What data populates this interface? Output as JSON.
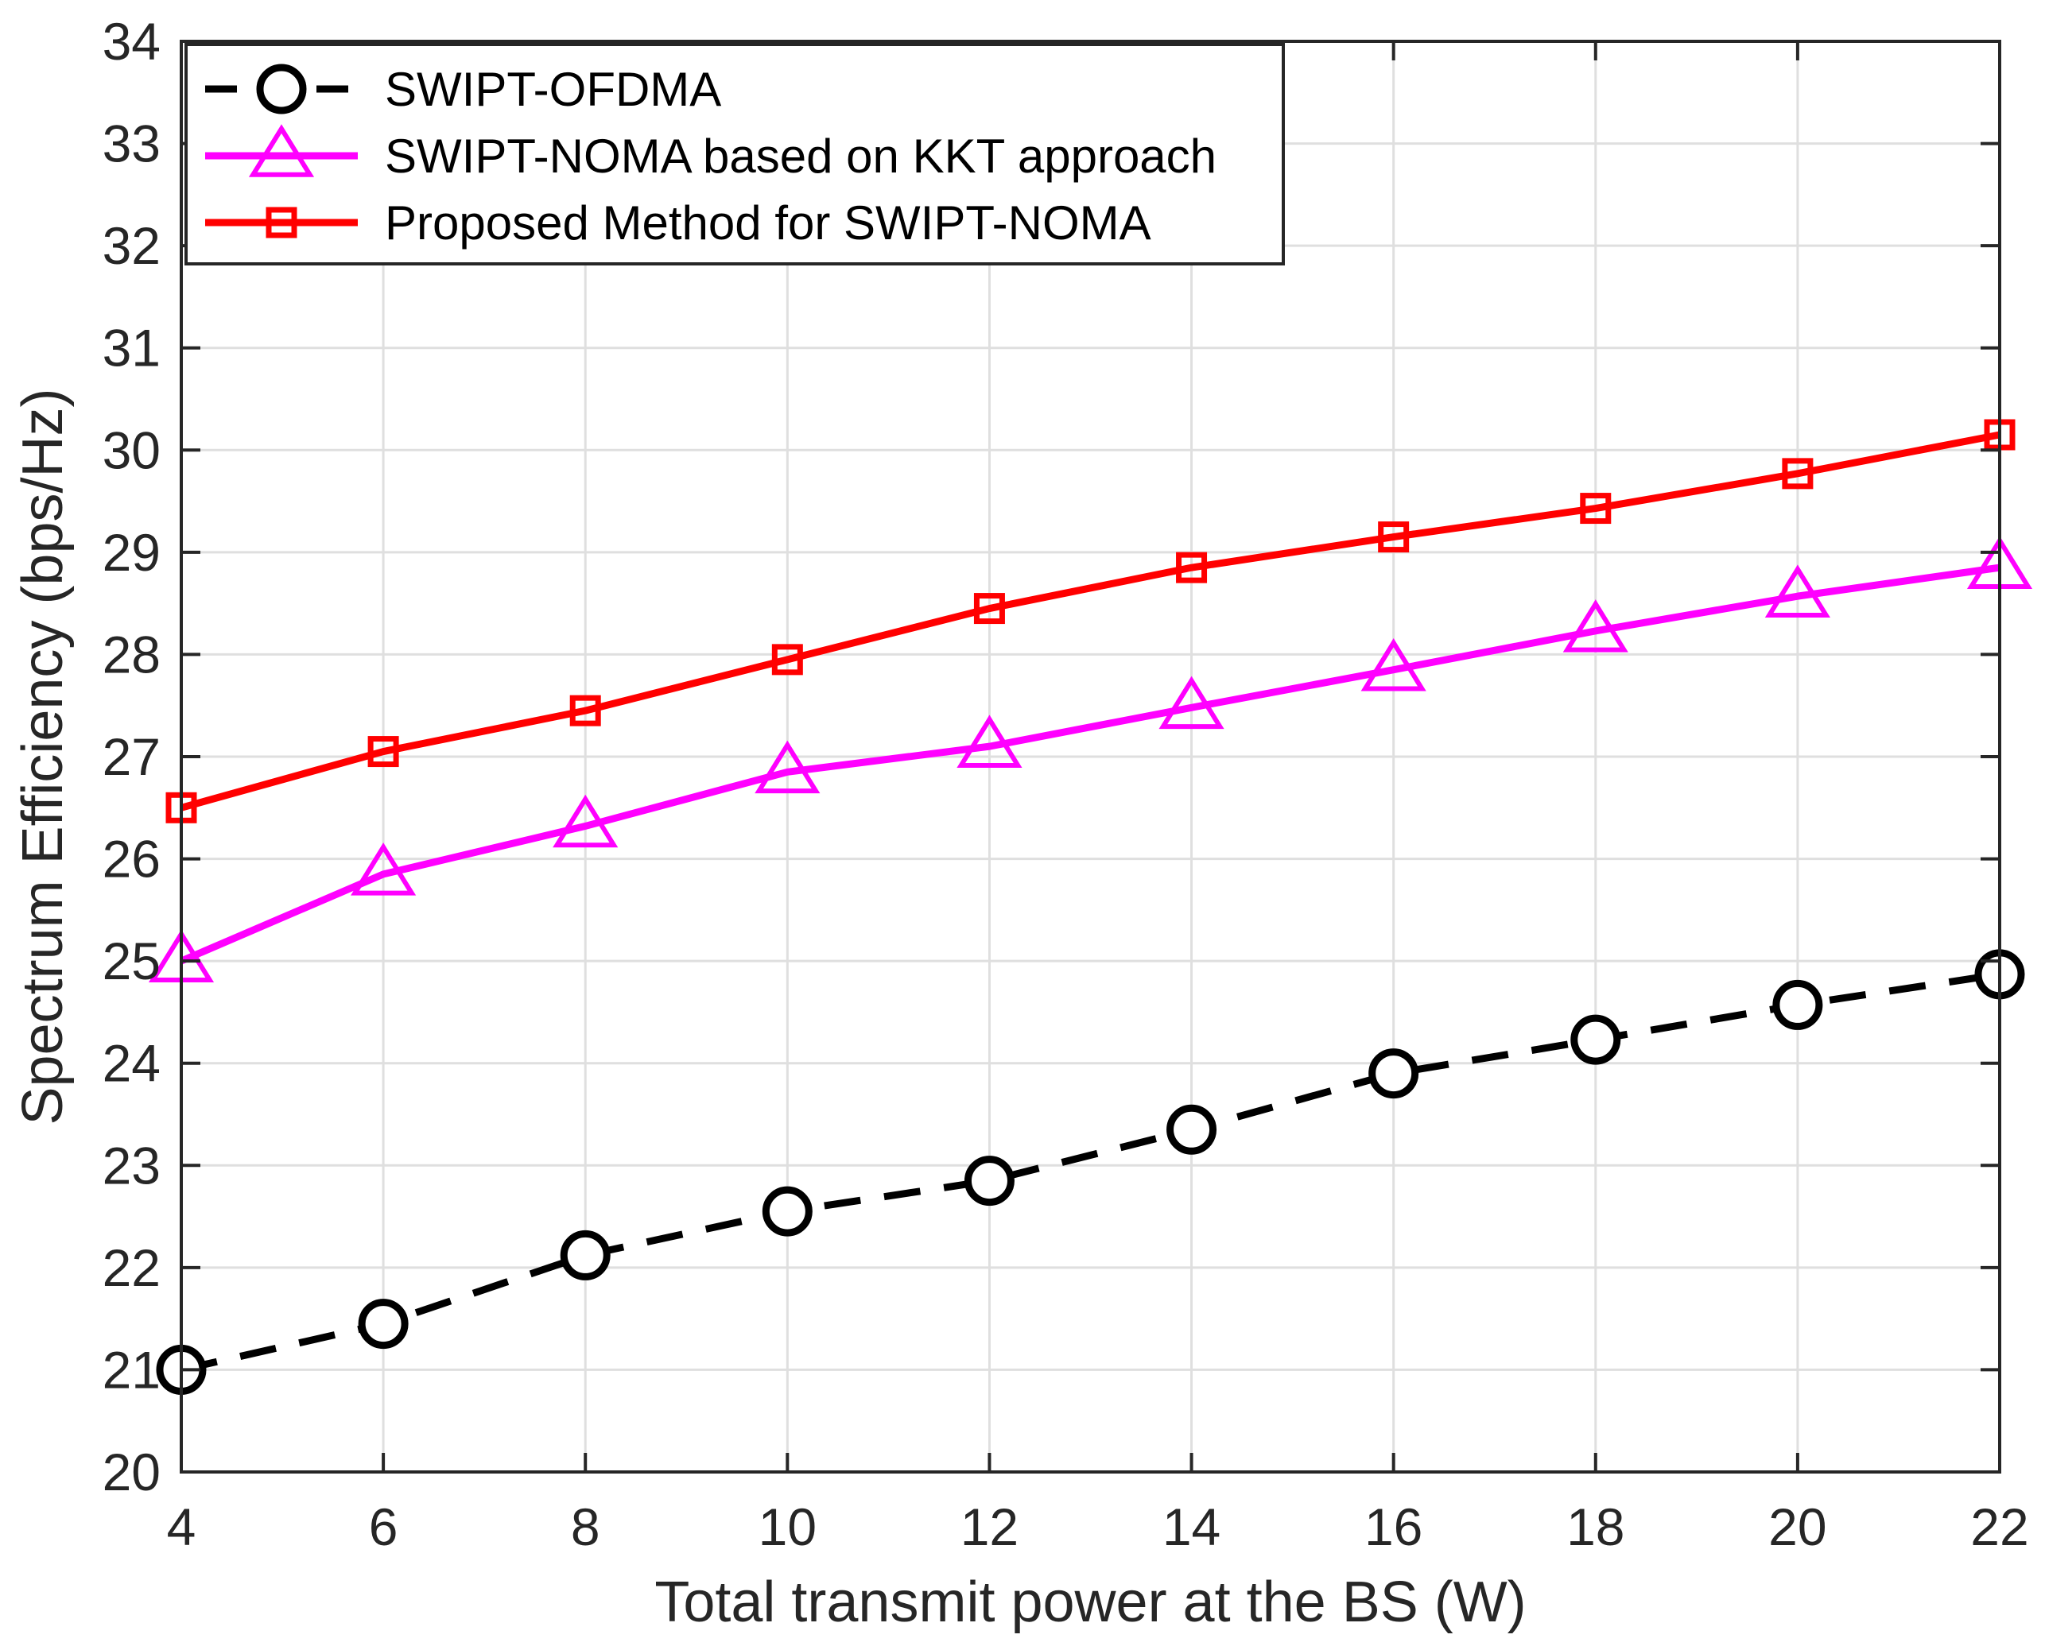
{
  "chart_data": {
    "type": "line",
    "title": "",
    "xlabel": "Total transmit power at the BS (W)",
    "ylabel": "Spectrum Efficiency (bps/Hz)",
    "xlim": [
      4,
      22
    ],
    "ylim": [
      20,
      34
    ],
    "grid": true,
    "legend_position": "top-left",
    "x": [
      4,
      6,
      8,
      10,
      12,
      14,
      16,
      18,
      20,
      22
    ],
    "xticks": [
      "4",
      "6",
      "8",
      "10",
      "12",
      "14",
      "16",
      "18",
      "20",
      "22"
    ],
    "yticks": [
      "20",
      "21",
      "22",
      "23",
      "24",
      "25",
      "26",
      "27",
      "28",
      "29",
      "30",
      "31",
      "32",
      "33",
      "34"
    ],
    "series": [
      {
        "name": "SWIPT-OFDMA",
        "color": "#000000",
        "line_style": "dashed",
        "marker": "circle",
        "values": [
          21.0,
          21.45,
          22.12,
          22.55,
          22.85,
          23.35,
          23.9,
          24.23,
          24.57,
          24.87
        ]
      },
      {
        "name": "SWIPT-NOMA based on KKT approach",
        "color": "#ff00ff",
        "line_style": "solid",
        "marker": "triangle",
        "values": [
          25.0,
          25.85,
          26.32,
          26.85,
          27.1,
          27.48,
          27.85,
          28.23,
          28.57,
          28.85
        ]
      },
      {
        "name": "Proposed Method for SWIPT-NOMA",
        "color": "#ff0000",
        "line_style": "solid",
        "marker": "square",
        "values": [
          26.5,
          27.05,
          27.45,
          27.95,
          28.45,
          28.85,
          29.15,
          29.43,
          29.77,
          30.15
        ]
      }
    ]
  }
}
